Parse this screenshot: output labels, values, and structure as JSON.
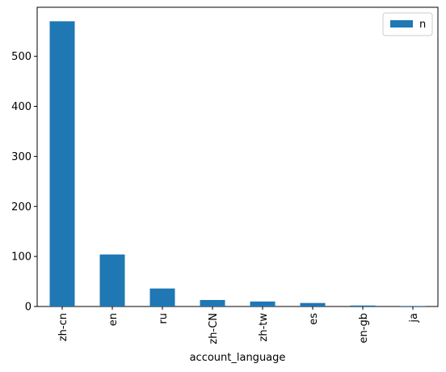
{
  "chart_data": {
    "type": "bar",
    "title": "",
    "xlabel": "account_language",
    "ylabel": "",
    "categories": [
      "zh-cn",
      "en",
      "ru",
      "zh-CN",
      "zh-tw",
      "es",
      "en-gb",
      "ja"
    ],
    "series": [
      {
        "name": "n",
        "values": [
          570,
          104,
          36,
          13,
          10,
          7,
          2,
          1
        ],
        "color": "#1f77b4"
      }
    ],
    "ylim": [
      0,
      598
    ],
    "yticks": [
      0,
      100,
      200,
      300,
      400,
      500
    ],
    "grid": false,
    "legend_position": "top-right"
  }
}
